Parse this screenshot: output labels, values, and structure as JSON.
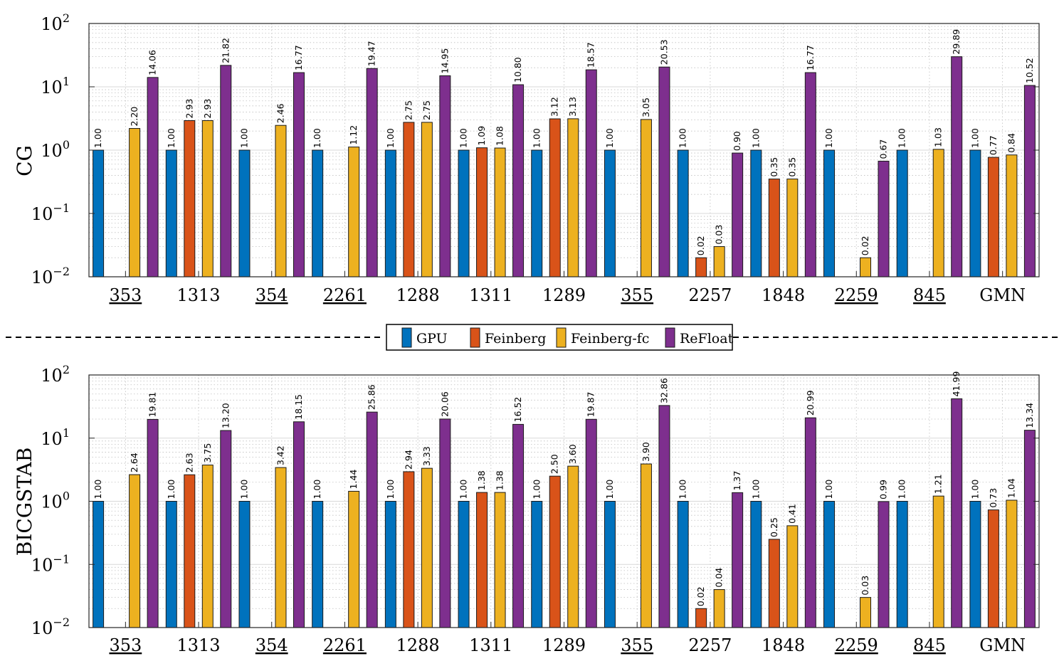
{
  "chart_data": [
    {
      "type": "bar",
      "panel": "top",
      "ylabel": "CG",
      "yscale": "log",
      "ylim": [
        0.01,
        100
      ],
      "yticks": [
        {
          "base": "10",
          "exp": "2"
        },
        {
          "base": "10",
          "exp": "1"
        },
        {
          "base": "10",
          "exp": "0"
        },
        {
          "base": "10",
          "exp": "−1"
        },
        {
          "base": "10",
          "exp": "−2"
        }
      ],
      "grid": true,
      "categories": [
        "353",
        "1313",
        "354",
        "2261",
        "1288",
        "1311",
        "1289",
        "355",
        "2257",
        "1848",
        "2259",
        "845",
        "GMN"
      ],
      "underlined": [
        true,
        false,
        true,
        true,
        false,
        false,
        false,
        true,
        false,
        false,
        true,
        true,
        false
      ],
      "series": [
        {
          "name": "GPU",
          "values": [
            1.0,
            1.0,
            1.0,
            1.0,
            1.0,
            1.0,
            1.0,
            1.0,
            1.0,
            1.0,
            1.0,
            1.0,
            1.0
          ],
          "labels": [
            "1.00",
            "1.00",
            "1.00",
            "1.00",
            "1.00",
            "1.00",
            "1.00",
            "1.00",
            "1.00",
            "1.00",
            "1.00",
            "1.00",
            "1.00"
          ]
        },
        {
          "name": "Feinberg",
          "values": [
            null,
            2.93,
            null,
            null,
            2.75,
            1.09,
            3.12,
            null,
            0.02,
            0.35,
            null,
            null,
            0.77
          ],
          "labels": [
            null,
            "2.93",
            null,
            null,
            "2.75",
            "1.09",
            "3.12",
            null,
            "0.02",
            "0.35",
            null,
            null,
            "0.77"
          ]
        },
        {
          "name": "Feinberg-fc",
          "values": [
            2.2,
            2.93,
            2.46,
            1.12,
            2.75,
            1.08,
            3.13,
            3.05,
            0.03,
            0.35,
            0.02,
            1.03,
            0.84
          ],
          "labels": [
            "2.20",
            "2.93",
            "2.46",
            "1.12",
            "2.75",
            "1.08",
            "3.13",
            "3.05",
            "0.03",
            "0.35",
            "0.02",
            "1.03",
            "0.84"
          ]
        },
        {
          "name": "ReFloat",
          "values": [
            14.06,
            21.82,
            16.77,
            19.47,
            14.95,
            10.8,
            18.57,
            20.53,
            0.9,
            16.77,
            0.67,
            29.89,
            10.52
          ],
          "labels": [
            "14.06",
            "21.82",
            "16.77",
            "19.47",
            "14.95",
            "10.80",
            "18.57",
            "20.53",
            "0.90",
            "16.77",
            "0.67",
            "29.89",
            "10.52"
          ]
        }
      ]
    },
    {
      "type": "bar",
      "panel": "bottom",
      "ylabel": "BICGSTAB",
      "yscale": "log",
      "ylim": [
        0.01,
        100
      ],
      "yticks": [
        {
          "base": "10",
          "exp": "2"
        },
        {
          "base": "10",
          "exp": "1"
        },
        {
          "base": "10",
          "exp": "0"
        },
        {
          "base": "10",
          "exp": "−1"
        },
        {
          "base": "10",
          "exp": "−2"
        }
      ],
      "grid": true,
      "categories": [
        "353",
        "1313",
        "354",
        "2261",
        "1288",
        "1311",
        "1289",
        "355",
        "2257",
        "1848",
        "2259",
        "845",
        "GMN"
      ],
      "underlined": [
        true,
        false,
        true,
        true,
        false,
        false,
        false,
        true,
        false,
        false,
        true,
        true,
        false
      ],
      "series": [
        {
          "name": "GPU",
          "values": [
            1.0,
            1.0,
            1.0,
            1.0,
            1.0,
            1.0,
            1.0,
            1.0,
            1.0,
            1.0,
            1.0,
            1.0,
            1.0
          ],
          "labels": [
            "1.00",
            "1.00",
            "1.00",
            "1.00",
            "1.00",
            "1.00",
            "1.00",
            "1.00",
            "1.00",
            "1.00",
            "1.00",
            "1.00",
            "1.00"
          ]
        },
        {
          "name": "Feinberg",
          "values": [
            null,
            2.63,
            null,
            null,
            2.94,
            1.38,
            2.5,
            null,
            0.02,
            0.25,
            null,
            null,
            0.73
          ],
          "labels": [
            null,
            "2.63",
            null,
            null,
            "2.94",
            "1.38",
            "2.50",
            null,
            "0.02",
            "0.25",
            null,
            null,
            "0.73"
          ]
        },
        {
          "name": "Feinberg-fc",
          "values": [
            2.64,
            3.75,
            3.42,
            1.44,
            3.33,
            1.38,
            3.6,
            3.9,
            0.04,
            0.41,
            0.03,
            1.21,
            1.04
          ],
          "labels": [
            "2.64",
            "3.75",
            "3.42",
            "1.44",
            "3.33",
            "1.38",
            "3.60",
            "3.90",
            "0.04",
            "0.41",
            "0.03",
            "1.21",
            "1.04"
          ]
        },
        {
          "name": "ReFloat",
          "values": [
            19.81,
            13.2,
            18.15,
            25.86,
            20.06,
            16.52,
            19.87,
            32.86,
            1.37,
            20.99,
            0.99,
            41.99,
            13.34
          ],
          "labels": [
            "19.81",
            "13.20",
            "18.15",
            "25.86",
            "20.06",
            "16.52",
            "19.87",
            "32.86",
            "1.37",
            "20.99",
            "0.99",
            "41.99",
            "13.34"
          ]
        }
      ]
    }
  ],
  "legend": {
    "placement": "center-between-panels",
    "items": [
      {
        "name": "GPU",
        "color": "#0072BD"
      },
      {
        "name": "Feinberg",
        "color": "#D95319"
      },
      {
        "name": "Feinberg-fc",
        "color": "#EDB120"
      },
      {
        "name": "ReFloat",
        "color": "#7E2F8E"
      }
    ]
  },
  "colors": {
    "GPU": "#0072BD",
    "Feinberg": "#D95319",
    "Feinberg-fc": "#EDB120",
    "ReFloat": "#7E2F8E",
    "grid_major": "#d9d9d9",
    "grid_minor": "#bfbfbf",
    "axis": "#262626"
  }
}
